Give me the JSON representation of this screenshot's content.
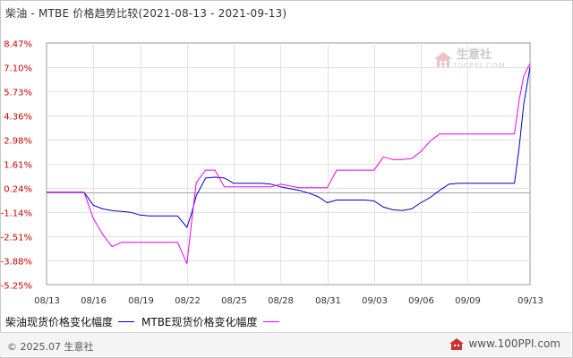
{
  "title": "柴油 - MTBE 价格趋势比较(2021-08-13 - 2021-09-13)",
  "watermark": {
    "name": "生意社",
    "domain": "100PPI.COM"
  },
  "footer": {
    "copyright": "© 2025.07 生意社",
    "site": "www.100PPI.com"
  },
  "colors": {
    "diesel": "#0000cc",
    "mtbe": "#ee00ee",
    "ytick": "#cc0000",
    "grid": "#e2e2e2",
    "zero": "#a0a0a0"
  },
  "chart_data": {
    "type": "line",
    "title": "柴油 - MTBE 价格趋势比较(2021-08-13 - 2021-09-13)",
    "ylim": [
      -5.25,
      8.47
    ],
    "yticks": [
      "8.47%",
      "7.10%",
      "5.73%",
      "4.36%",
      "2.98%",
      "1.61%",
      "0.24%",
      "-1.14%",
      "-2.51%",
      "-3.88%",
      "-5.25%"
    ],
    "ytick_values": [
      8.47,
      7.1,
      5.73,
      4.36,
      2.98,
      1.61,
      0.24,
      -1.14,
      -2.51,
      -3.88,
      -5.25
    ],
    "xticks": [
      "08/13",
      "08/16",
      "08/19",
      "08/22",
      "08/25",
      "08/28",
      "08/31",
      "09/03",
      "09/06",
      "09/09",
      "09/13"
    ],
    "xtick_days": [
      0,
      3,
      6,
      9,
      12,
      15,
      18,
      21,
      24,
      27,
      31
    ],
    "x": [
      0,
      0.6,
      1.2,
      1.8,
      2.4,
      3,
      3.6,
      4.2,
      4.8,
      5.4,
      6,
      6.6,
      7.2,
      7.8,
      8.4,
      9,
      9.3,
      9.6,
      10.2,
      10.8,
      11.4,
      12,
      12.6,
      13.2,
      13.8,
      14.4,
      15,
      15.6,
      16.2,
      16.8,
      17.4,
      18,
      18.6,
      19.2,
      19.8,
      20.4,
      21,
      21.6,
      22.2,
      22.8,
      23.4,
      24,
      24.6,
      25.2,
      25.8,
      26.4,
      27,
      27.6,
      28.2,
      28.8,
      29.4,
      30,
      30.3,
      30.6,
      31
    ],
    "series": [
      {
        "name": "柴油现货价格变化幅度",
        "values": [
          0,
          0,
          0,
          0,
          0,
          -0.75,
          -0.95,
          -1.05,
          -1.1,
          -1.15,
          -1.3,
          -1.35,
          -1.35,
          -1.35,
          -1.35,
          -2.0,
          -1.2,
          -0.2,
          0.8,
          0.85,
          0.8,
          0.5,
          0.5,
          0.5,
          0.5,
          0.45,
          0.3,
          0.2,
          0.1,
          -0.05,
          -0.25,
          -0.6,
          -0.45,
          -0.45,
          -0.45,
          -0.45,
          -0.5,
          -0.85,
          -1.0,
          -1.05,
          -0.95,
          -0.6,
          -0.3,
          0.1,
          0.45,
          0.5,
          0.5,
          0.5,
          0.5,
          0.5,
          0.5,
          0.5,
          2.5,
          5.0,
          7.1
        ]
      },
      {
        "name": "MTBE现货价格变化幅度",
        "values": [
          0,
          0,
          0,
          0,
          0,
          -1.5,
          -2.4,
          -3.1,
          -2.85,
          -2.85,
          -2.85,
          -2.85,
          -2.85,
          -2.85,
          -2.85,
          -4.05,
          -1.7,
          0.55,
          1.25,
          1.25,
          0.3,
          0.3,
          0.3,
          0.3,
          0.3,
          0.3,
          0.45,
          0.35,
          0.25,
          0.25,
          0.25,
          0.25,
          1.25,
          1.25,
          1.25,
          1.25,
          1.25,
          2.0,
          1.85,
          1.85,
          1.9,
          2.3,
          2.9,
          3.3,
          3.3,
          3.3,
          3.3,
          3.3,
          3.3,
          3.3,
          3.3,
          3.3,
          5.2,
          6.6,
          7.3
        ]
      }
    ]
  }
}
